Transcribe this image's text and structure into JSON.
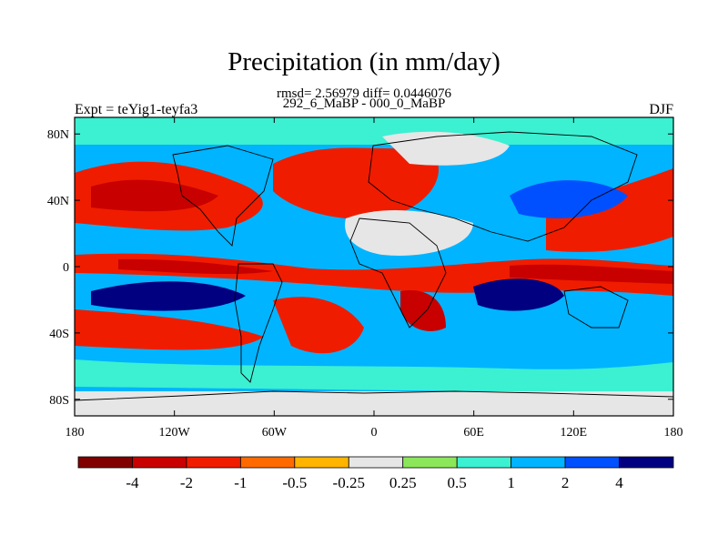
{
  "chart_data": {
    "type": "heatmap",
    "title": "Precipitation (in mm/day)",
    "stats_line": "rmsd= 2.56979 diff= 0.0446076",
    "subtitle": "292_6_MaBP - 000_0_MaBP",
    "left_label": "Expt = teYig1-teyfa3",
    "right_label": "DJF",
    "x_ticks": [
      "180",
      "120W",
      "60W",
      "0",
      "60E",
      "120E",
      "180"
    ],
    "y_ticks": [
      "80N",
      "40N",
      "0",
      "40S",
      "80S"
    ],
    "xlim": [
      -180,
      180
    ],
    "ylim": [
      -90,
      90
    ],
    "x_tick_values": [
      -180,
      -120,
      -60,
      0,
      60,
      120,
      180
    ],
    "y_tick_values": [
      80,
      40,
      0,
      -40,
      -80
    ],
    "colorbar": {
      "labels": [
        "-4",
        "-2",
        "-1",
        "-0.5",
        "-0.25",
        "0.25",
        "0.5",
        "1",
        "2",
        "4"
      ],
      "colors": [
        "#800000",
        "#c80000",
        "#f01c00",
        "#ff6a00",
        "#ffb400",
        "#e6e6e6",
        "#8ce65a",
        "#3cf0d2",
        "#00b4ff",
        "#0050ff",
        "#000080"
      ]
    }
  }
}
